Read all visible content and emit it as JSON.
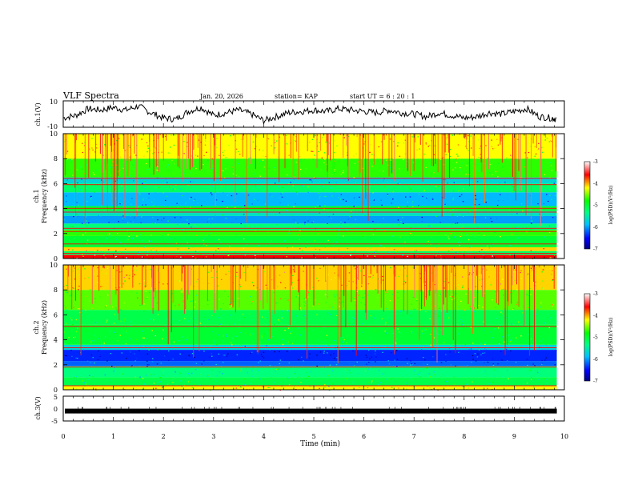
{
  "header": {
    "title": "VLF Spectra",
    "date": "Jan. 20, 2026",
    "station": "station= KAP",
    "start_ut": "start  UT =   6 : 20 : 1"
  },
  "colors": {
    "scale": [
      "#000080",
      "#0000ff",
      "#0080ff",
      "#00ffff",
      "#00ff80",
      "#00ff00",
      "#80ff00",
      "#ffff00",
      "#ff8000",
      "#ff0000",
      "#ffffff"
    ]
  },
  "chart_data": [
    {
      "type": "line",
      "name": "ch1-voltage",
      "ylabel": "ch.1(V)",
      "ylim": [
        -10,
        10
      ],
      "yticks": [
        10,
        -10
      ],
      "xlim": [
        0,
        10
      ],
      "x": [
        0,
        0.25,
        0.5,
        0.75,
        1,
        1.25,
        1.5,
        1.75,
        2,
        2.25,
        2.5,
        2.75,
        3,
        3.25,
        3.5,
        3.75,
        4,
        4.25,
        4.5,
        4.75,
        5,
        5.25,
        5.5,
        5.75,
        6,
        6.25,
        6.5,
        6.75,
        7,
        7.25,
        7.5,
        7.75,
        8,
        8.25,
        8.5,
        8.75,
        9,
        9.25,
        9.5,
        9.75,
        9.85
      ],
      "values": [
        -3,
        -1,
        4,
        3,
        5,
        3,
        6,
        1,
        -3,
        -4,
        2,
        5,
        -1,
        1,
        3,
        0,
        -5,
        -2,
        1,
        2,
        3,
        2,
        4,
        3,
        2,
        1,
        3,
        1,
        0,
        -2,
        1,
        -1,
        -3,
        -2,
        1,
        0,
        2,
        4,
        -2,
        -3,
        -4
      ]
    },
    {
      "type": "heatmap",
      "name": "ch1-spectrogram",
      "ylabel": "ch.1",
      "ylabel2": "Frequency  (kHz)",
      "ylim": [
        0,
        10
      ],
      "yticks": [
        0,
        2,
        4,
        6,
        8,
        10
      ],
      "xlim": [
        0,
        10
      ],
      "data_end_min": 9.85,
      "colorbar_label": "log(PSD)(V²/Hz)",
      "colorbar_range": [
        -7,
        -3
      ],
      "colorbar_ticks": [
        -3,
        -4,
        -5,
        -6,
        -7
      ],
      "band_profile": [
        {
          "f": [
            0,
            0.3
          ],
          "v": -3.6
        },
        {
          "f": [
            0.3,
            0.6
          ],
          "v": -5.2
        },
        {
          "f": [
            0.6,
            0.9
          ],
          "v": -4.1
        },
        {
          "f": [
            0.9,
            1.8
          ],
          "v": -5.0
        },
        {
          "f": [
            1.8,
            2.3
          ],
          "v": -4.7
        },
        {
          "f": [
            2.3,
            2.8
          ],
          "v": -5.3
        },
        {
          "f": [
            2.8,
            3.4
          ],
          "v": -6.0
        },
        {
          "f": [
            3.4,
            3.8
          ],
          "v": -5.6
        },
        {
          "f": [
            3.8,
            4.2
          ],
          "v": -5.0
        },
        {
          "f": [
            4.2,
            5.3
          ],
          "v": -5.9
        },
        {
          "f": [
            5.3,
            6.0
          ],
          "v": -5.2
        },
        {
          "f": [
            6.0,
            6.5
          ],
          "v": -5.7
        },
        {
          "f": [
            6.5,
            8.0
          ],
          "v": -4.7
        },
        {
          "f": [
            8.0,
            10.0
          ],
          "v": -4.2
        }
      ],
      "lines_khz": [
        0.45,
        1.2,
        2.2,
        2.45,
        3.75,
        4.05,
        5.95,
        6.45
      ]
    },
    {
      "type": "heatmap",
      "name": "ch2-spectrogram",
      "ylabel": "ch.2",
      "ylabel2": "Frequency  (kHz)",
      "ylim": [
        0,
        10
      ],
      "yticks": [
        0,
        2,
        4,
        6,
        8,
        10
      ],
      "xlim": [
        0,
        10
      ],
      "data_end_min": 9.85,
      "colorbar_label": "log(PSD)(V²/Hz)",
      "colorbar_range": [
        -7,
        -3
      ],
      "colorbar_ticks": [
        -3,
        -4,
        -5,
        -6,
        -7
      ],
      "band_profile": [
        {
          "f": [
            0,
            0.3
          ],
          "v": -4.2
        },
        {
          "f": [
            0.3,
            1.0
          ],
          "v": -5.1
        },
        {
          "f": [
            1.0,
            1.9
          ],
          "v": -5.3
        },
        {
          "f": [
            1.9,
            2.3
          ],
          "v": -6.2
        },
        {
          "f": [
            2.3,
            3.2
          ],
          "v": -6.4
        },
        {
          "f": [
            3.2,
            3.6
          ],
          "v": -5.7
        },
        {
          "f": [
            3.6,
            5.2
          ],
          "v": -5.0
        },
        {
          "f": [
            5.2,
            6.4
          ],
          "v": -5.1
        },
        {
          "f": [
            6.4,
            8.0
          ],
          "v": -4.6
        },
        {
          "f": [
            8.0,
            10.0
          ],
          "v": -4.1
        }
      ],
      "lines_khz": [
        0.35,
        1.85,
        3.4,
        5.1
      ]
    },
    {
      "type": "line",
      "name": "ch3-voltage",
      "ylabel": "ch.3(V)",
      "ylim": [
        -5,
        5
      ],
      "yticks": [
        5,
        0,
        -5
      ],
      "xlim": [
        0,
        10
      ],
      "x": [
        0,
        9.85
      ],
      "values": [
        -1,
        -1
      ],
      "xlabel": "Time  (min)",
      "xticks": [
        0,
        1,
        2,
        3,
        4,
        5,
        6,
        7,
        8,
        9,
        10
      ]
    }
  ]
}
